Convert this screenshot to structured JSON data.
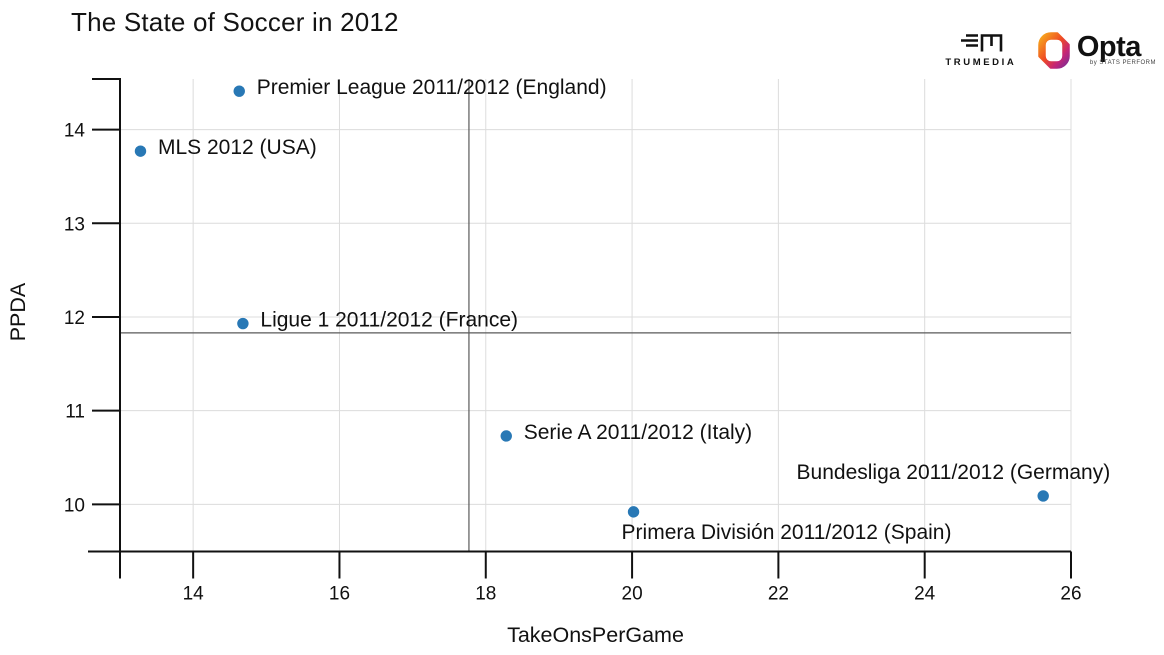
{
  "chart_data": {
    "type": "scatter",
    "title": "The State of Soccer in 2012",
    "xlabel": "TakeOnsPerGame",
    "ylabel": "PPDA",
    "xlim": [
      13.0,
      26.0
    ],
    "ylim": [
      9.497,
      14.54
    ],
    "xticks": [
      14,
      16,
      18,
      20,
      22,
      24,
      26
    ],
    "yticks": [
      10,
      11,
      12,
      13,
      14
    ],
    "grid": true,
    "legend_position": "none",
    "reference_lines": {
      "x": 17.77,
      "y": 11.83
    },
    "points": [
      {
        "label": "Premier League 2011/2012 (England)",
        "x": 14.63,
        "y": 14.41,
        "label_pos": "right"
      },
      {
        "label": "MLS 2012 (USA)",
        "x": 13.28,
        "y": 13.77,
        "label_pos": "right"
      },
      {
        "label": "Ligue 1 2011/2012 (France)",
        "x": 14.68,
        "y": 11.93,
        "label_pos": "right"
      },
      {
        "label": "Serie A 2011/2012 (Italy)",
        "x": 18.28,
        "y": 10.73,
        "label_pos": "right"
      },
      {
        "label": "Primera División 2011/2012 (Spain)",
        "x": 20.02,
        "y": 9.92,
        "label_pos": "below"
      },
      {
        "label": "Bundesliga 2011/2012 (Germany)",
        "x": 25.62,
        "y": 10.09,
        "label_pos": "above"
      }
    ],
    "colors": {
      "point": "#2878b5",
      "grid": "#dcdcdc",
      "axis": "#111111",
      "reference": "#5a5a5a",
      "label": "#111111",
      "title": "#131313"
    }
  },
  "branding": {
    "trumedia_label": "TRUMEDIA",
    "opta_label": "Opta",
    "opta_sub": "by STATS PERFORM"
  }
}
